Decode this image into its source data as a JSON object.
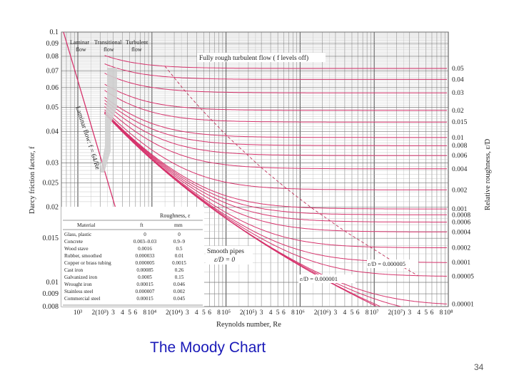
{
  "slide": {
    "caption": "The Moody Chart",
    "page_number": "34"
  },
  "chart_data": {
    "type": "line",
    "xlabel": "Reynolds number, Re",
    "ylabel": "Darcy friction factor, f",
    "y2label": "Relative roughness, ε/D",
    "x_scale": "log",
    "y_scale": "log",
    "xlim": [
      600,
      100000000
    ],
    "ylim": [
      0.008,
      0.1
    ],
    "grid": true,
    "x_tick_labels": [
      "10³",
      "2(10³)",
      "3",
      "4",
      "5",
      "6",
      "8",
      "10⁴",
      "2(10⁴)",
      "3",
      "4",
      "5",
      "6",
      "8",
      "10⁵",
      "2(10⁵)",
      "3",
      "4",
      "5",
      "6",
      "8",
      "10⁶",
      "2(10⁶)",
      "3",
      "4",
      "5",
      "6",
      "8",
      "10⁷",
      "2(10⁷)",
      "3",
      "4",
      "5",
      "6",
      "8",
      "10⁸"
    ],
    "y_ticks": [
      0.1,
      0.09,
      0.08,
      0.07,
      0.06,
      0.05,
      0.04,
      0.03,
      0.025,
      0.02,
      0.015,
      0.01,
      0.009,
      0.008
    ],
    "y_tick_labels": [
      "0.1",
      "0.09",
      "0.08",
      "0.07",
      "0.06",
      "0.05",
      "0.04",
      "0.03",
      "0.025",
      "0.02",
      "0.015",
      "0.01",
      "0.009",
      "0.008"
    ],
    "roughness_labels": [
      "0.05",
      "0.04",
      "0.03",
      "0.02",
      "0.015",
      "0.01",
      "0.008",
      "0.006",
      "0.004",
      "0.002",
      "0.001",
      "0.0008",
      "0.0006",
      "0.0004",
      "0.0002",
      "0.0001",
      "0.00005",
      "0.00001"
    ],
    "roughness_curves": [
      0.05,
      0.04,
      0.03,
      0.02,
      0.015,
      0.01,
      0.008,
      0.006,
      0.004,
      0.002,
      0.001,
      0.0008,
      0.0006,
      0.0004,
      0.0002,
      0.0001,
      5e-05,
      1e-05,
      5e-06,
      1e-06
    ],
    "annotations": {
      "laminar_region": [
        "Laminar",
        "flow"
      ],
      "transition_region": [
        "Transitional",
        "flow"
      ],
      "turbulent_region": [
        "Turbulent",
        "flow"
      ],
      "fully_rough": "Fully rough turbulent flow ( f levels off)",
      "laminar_line": "Laminar flow: f = 64/Re",
      "smooth_pipes": [
        "Smooth pipes",
        "ε/D = 0"
      ],
      "curve_a": "ε/D = 0.000005",
      "curve_b": "ε/D = 0.000001",
      "bottom_right": "0.00001"
    },
    "roughness_table": {
      "title": "Roughness, ε",
      "headers": [
        "Material",
        "ft",
        "mm"
      ],
      "rows": [
        [
          "Glass, plastic",
          "0",
          "0"
        ],
        [
          "Concrete",
          "0.003–0.03",
          "0.9–9"
        ],
        [
          "Wood stave",
          "0.0016",
          "0.5"
        ],
        [
          "Rubber, smoothed",
          "0.000033",
          "0.01"
        ],
        [
          "Copper or brass tubing",
          "0.000005",
          "0.0015"
        ],
        [
          "Cast iron",
          "0.00085",
          "0.26"
        ],
        [
          "Galvanized iron",
          "0.0005",
          "0.15"
        ],
        [
          "Wrought iron",
          "0.00015",
          "0.046"
        ],
        [
          "Stainless steel",
          "0.000007",
          "0.002"
        ],
        [
          "Commercial steel",
          "0.00015",
          "0.045"
        ]
      ]
    }
  }
}
